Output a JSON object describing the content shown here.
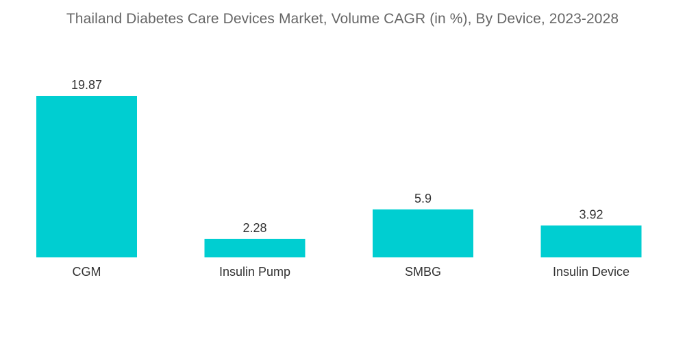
{
  "chart_data": {
    "type": "bar",
    "title": "Thailand Diabetes Care Devices Market, Volume CAGR  (in %),  By Device, 2023-2028",
    "xlabel": "",
    "ylabel": "",
    "categories": [
      "CGM",
      "Insulin Pump",
      "SMBG",
      "Insulin Device"
    ],
    "values": [
      19.87,
      2.28,
      5.9,
      3.92
    ],
    "value_labels": [
      "19.87",
      "2.28",
      "5.9",
      "3.92"
    ],
    "ylim": [
      0,
      19.87
    ],
    "grid": false,
    "legend": "none",
    "bar_color": "#00CED1"
  }
}
